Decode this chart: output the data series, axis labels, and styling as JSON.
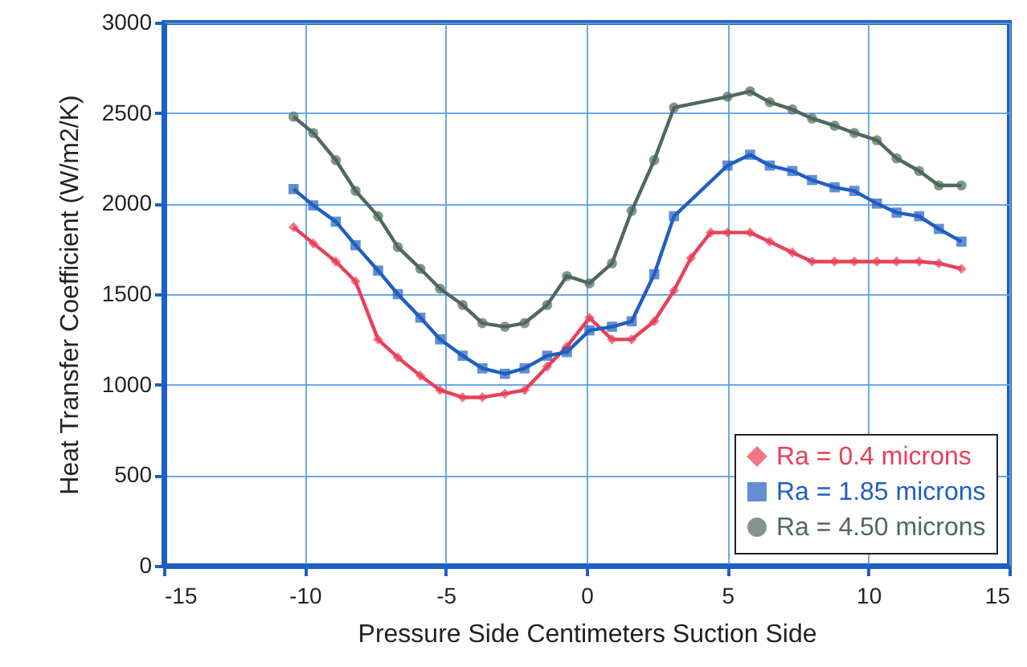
{
  "chart_data": {
    "type": "line",
    "xlabel": "Pressure Side      Centimeters      Suction Side",
    "ylabel": "Heat Transfer Coefficient  (W/m2/K)",
    "xlim": [
      -15,
      15
    ],
    "xticks": [
      -15,
      -10,
      -5,
      0,
      5,
      10,
      15
    ],
    "ylim": [
      0,
      3000
    ],
    "yticks": [
      0,
      500,
      1000,
      1500,
      2000,
      2500,
      3000
    ],
    "grid": true,
    "legend": "bottom right",
    "line_style": "solid",
    "series": [
      {
        "name": "Ra = 0.4 microns",
        "color": "#e8405a",
        "marker": "diamond",
        "x": [
          -10.4,
          -9.7,
          -8.9,
          -8.2,
          -7.4,
          -6.7,
          -5.9,
          -5.2,
          -4.4,
          -3.7,
          -2.9,
          -2.2,
          -1.4,
          -0.7,
          0.1,
          0.9,
          1.6,
          2.4,
          3.1,
          3.7,
          4.4,
          5.0,
          5.8,
          6.5,
          7.3,
          8.0,
          8.8,
          9.5,
          10.3,
          11.0,
          11.8,
          12.5,
          13.3
        ],
        "values": [
          1870,
          1780,
          1680,
          1570,
          1250,
          1150,
          1050,
          970,
          930,
          930,
          950,
          970,
          1100,
          1210,
          1370,
          1250,
          1250,
          1350,
          1520,
          1700,
          1840,
          1840,
          1840,
          1790,
          1730,
          1680,
          1680,
          1680,
          1680,
          1680,
          1680,
          1670,
          1640
        ]
      },
      {
        "name": "Ra = 1.85 microns",
        "color": "#1f5fc0",
        "marker": "square",
        "x": [
          -10.4,
          -9.7,
          -8.9,
          -8.2,
          -7.4,
          -6.7,
          -5.9,
          -5.2,
          -4.4,
          -3.7,
          -2.9,
          -2.2,
          -1.4,
          -0.7,
          0.1,
          0.9,
          1.6,
          2.4,
          3.1,
          5.0,
          5.8,
          6.5,
          7.3,
          8.0,
          8.8,
          9.5,
          10.3,
          11.0,
          11.8,
          12.5,
          13.3
        ],
        "values": [
          2080,
          1990,
          1900,
          1770,
          1630,
          1500,
          1370,
          1250,
          1160,
          1090,
          1060,
          1090,
          1160,
          1180,
          1300,
          1320,
          1350,
          1610,
          1930,
          2210,
          2270,
          2210,
          2180,
          2130,
          2090,
          2070,
          2000,
          1950,
          1930,
          1860,
          1790
        ]
      },
      {
        "name": "Ra = 4.50 microns",
        "color": "#4f6a5a",
        "marker": "circle",
        "x": [
          -10.4,
          -9.7,
          -8.9,
          -8.2,
          -7.4,
          -6.7,
          -5.9,
          -5.2,
          -4.4,
          -3.7,
          -2.9,
          -2.2,
          -1.4,
          -0.7,
          0.1,
          0.9,
          1.6,
          2.4,
          3.1,
          5.0,
          5.8,
          6.5,
          7.3,
          8.0,
          8.8,
          9.5,
          10.3,
          11.0,
          11.8,
          12.5,
          13.3
        ],
        "values": [
          2480,
          2390,
          2240,
          2070,
          1930,
          1760,
          1640,
          1530,
          1440,
          1340,
          1320,
          1340,
          1440,
          1600,
          1560,
          1670,
          1960,
          2240,
          2530,
          2590,
          2620,
          2560,
          2520,
          2470,
          2430,
          2390,
          2350,
          2250,
          2180,
          2100,
          2100
        ]
      }
    ]
  }
}
